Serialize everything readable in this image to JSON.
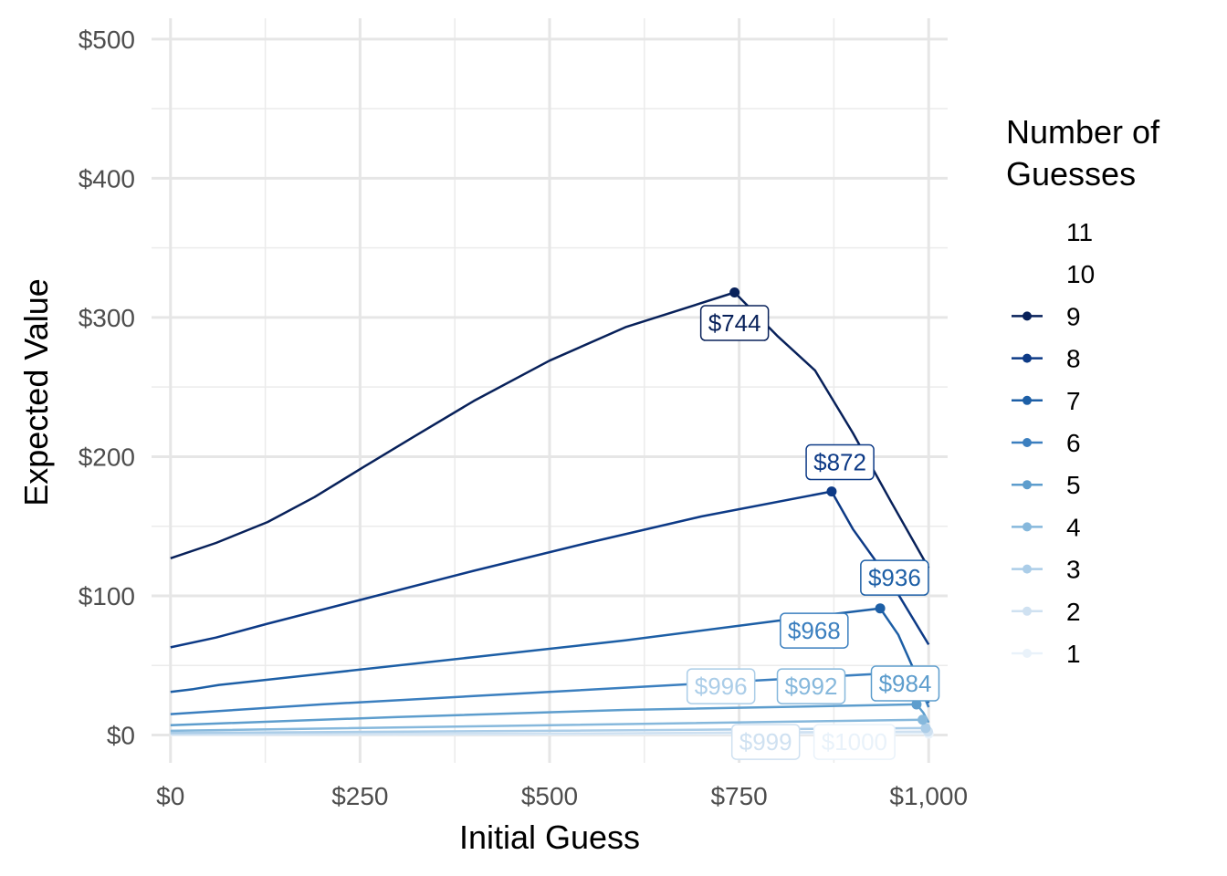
{
  "chart_data": {
    "type": "line",
    "xlabel": "Initial Guess",
    "ylabel": "Expected Value",
    "xlim": [
      -25,
      1025
    ],
    "ylim": [
      -20,
      515
    ],
    "x_ticks": [
      0,
      250,
      500,
      750,
      1000
    ],
    "x_tick_labels": [
      "$0",
      "$250",
      "$500",
      "$750",
      "$1,000"
    ],
    "y_ticks": [
      0,
      100,
      200,
      300,
      400,
      500
    ],
    "y_tick_labels": [
      "$0",
      "$100",
      "$200",
      "$300",
      "$400",
      "$500"
    ],
    "grid": true,
    "legend": {
      "title_lines": [
        "Number of",
        "Guesses"
      ],
      "placement": "right",
      "entries": [
        {
          "label": "11",
          "color": "#ffffff",
          "marker": false
        },
        {
          "label": "10",
          "color": "#ffffff",
          "marker": false
        },
        {
          "label": "9",
          "color": "#08215a",
          "marker": true
        },
        {
          "label": "8",
          "color": "#0d3a86",
          "marker": true
        },
        {
          "label": "7",
          "color": "#1d5fa6",
          "marker": true
        },
        {
          "label": "6",
          "color": "#3b7fbf",
          "marker": true
        },
        {
          "label": "5",
          "color": "#5d9dcd",
          "marker": true
        },
        {
          "label": "4",
          "color": "#86b8dc",
          "marker": true
        },
        {
          "label": "3",
          "color": "#abcde8",
          "marker": true
        },
        {
          "label": "2",
          "color": "#cfe1f1",
          "marker": true
        },
        {
          "label": "1",
          "color": "#e9f2fa",
          "marker": true
        }
      ]
    },
    "series": [
      {
        "name": "9",
        "color": "#08215a",
        "points": [
          [
            0,
            127
          ],
          [
            60,
            138
          ],
          [
            128,
            153
          ],
          [
            190,
            171
          ],
          [
            256,
            193
          ],
          [
            320,
            214
          ],
          [
            400,
            240
          ],
          [
            500,
            269
          ],
          [
            600,
            293
          ],
          [
            744,
            318
          ],
          [
            800,
            287
          ],
          [
            850,
            262
          ],
          [
            900,
            217
          ],
          [
            950,
            168
          ],
          [
            1000,
            120
          ]
        ],
        "peak": [
          744,
          318
        ],
        "label": "$744",
        "label_pos": [
          744,
          296
        ]
      },
      {
        "name": "8",
        "color": "#0d3a86",
        "points": [
          [
            0,
            63
          ],
          [
            60,
            70
          ],
          [
            128,
            80
          ],
          [
            250,
            97
          ],
          [
            400,
            118
          ],
          [
            550,
            138
          ],
          [
            700,
            157
          ],
          [
            872,
            175
          ],
          [
            900,
            148
          ],
          [
            950,
            110
          ],
          [
            1000,
            65
          ]
        ],
        "peak": [
          872,
          175
        ],
        "label": "$872",
        "label_pos": [
          883,
          196
        ]
      },
      {
        "name": "7",
        "color": "#1d5fa6",
        "points": [
          [
            0,
            31
          ],
          [
            30,
            33
          ],
          [
            64,
            36
          ],
          [
            200,
            44
          ],
          [
            400,
            56
          ],
          [
            600,
            68
          ],
          [
            800,
            82
          ],
          [
            936,
            91
          ],
          [
            960,
            72
          ],
          [
            1000,
            23
          ]
        ],
        "peak": [
          936,
          91
        ],
        "label": "$936",
        "label_pos": [
          955,
          113
        ]
      },
      {
        "name": "6",
        "color": "#3b7fbf",
        "points": [
          [
            0,
            15
          ],
          [
            200,
            22
          ],
          [
            400,
            28
          ],
          [
            600,
            34
          ],
          [
            800,
            40
          ],
          [
            968,
            45
          ],
          [
            985,
            39
          ],
          [
            1000,
            20
          ]
        ],
        "peak": [
          968,
          45
        ],
        "label": "$968",
        "label_pos": [
          849,
          75
        ]
      },
      {
        "name": "5",
        "color": "#5d9dcd",
        "points": [
          [
            0,
            7
          ],
          [
            300,
            13
          ],
          [
            600,
            18
          ],
          [
            984,
            22
          ],
          [
            993,
            16
          ],
          [
            1000,
            9
          ]
        ],
        "peak": [
          984,
          22
        ],
        "label": "$984",
        "label_pos": [
          969,
          37
        ]
      },
      {
        "name": "4",
        "color": "#86b8dc",
        "points": [
          [
            0,
            3
          ],
          [
            500,
            7
          ],
          [
            992,
            11
          ],
          [
            1000,
            5
          ]
        ],
        "peak": [
          992,
          11
        ],
        "label": "$992",
        "label_pos": [
          845,
          35
        ]
      },
      {
        "name": "3",
        "color": "#abcde8",
        "points": [
          [
            0,
            1.5
          ],
          [
            500,
            3
          ],
          [
            996,
            5
          ],
          [
            1000,
            2
          ]
        ],
        "peak": [
          996,
          5
        ],
        "label": "$996",
        "label_pos": [
          726,
          35
        ]
      },
      {
        "name": "2",
        "color": "#cfe1f1",
        "points": [
          [
            0,
            0.5
          ],
          [
            500,
            1
          ],
          [
            999,
            2.5
          ],
          [
            1000,
            1
          ]
        ],
        "peak": [
          999,
          2.5
        ],
        "label": "$999",
        "label_pos": [
          785,
          -5
        ]
      },
      {
        "name": "1",
        "color": "#e9f2fa",
        "points": [
          [
            0,
            0
          ],
          [
            500,
            0.5
          ],
          [
            1000,
            1
          ]
        ],
        "peak": [
          1000,
          1
        ],
        "label": "$1000",
        "label_pos": [
          902,
          -5
        ]
      }
    ]
  }
}
